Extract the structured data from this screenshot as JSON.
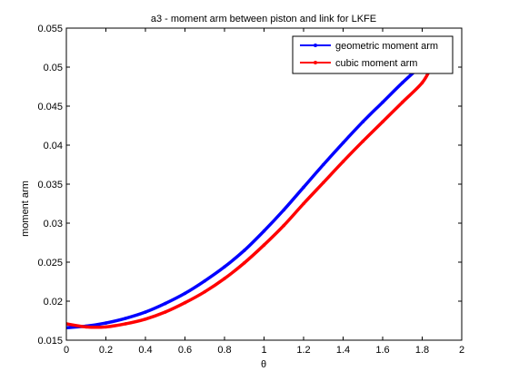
{
  "chart_data": {
    "type": "line",
    "title": "a3 - moment arm between piston and link for LKFE",
    "xlabel": "θ",
    "ylabel": "moment arm",
    "xlim": [
      0,
      2
    ],
    "ylim": [
      0.015,
      0.055
    ],
    "x_ticks": [
      0,
      0.2,
      0.4,
      0.6,
      0.8,
      1,
      1.2,
      1.4,
      1.6,
      1.8,
      2
    ],
    "x_tick_labels": [
      "0",
      "0.2",
      "0.4",
      "0.6",
      "0.8",
      "1",
      "1.2",
      "1.4",
      "1.6",
      "1.8",
      "2"
    ],
    "y_ticks": [
      0.015,
      0.02,
      0.025,
      0.03,
      0.035,
      0.04,
      0.045,
      0.05,
      0.055
    ],
    "y_tick_labels": [
      "0.015",
      "0.02",
      "0.025",
      "0.03",
      "0.035",
      "0.04",
      "0.045",
      "0.05",
      "0.055"
    ],
    "grid": false,
    "legend_position": "top-right",
    "series": [
      {
        "name": "geometric moment arm",
        "color": "#0000ff",
        "x": [
          0,
          0.1,
          0.2,
          0.3,
          0.4,
          0.5,
          0.6,
          0.7,
          0.8,
          0.9,
          1.0,
          1.1,
          1.2,
          1.3,
          1.4,
          1.5,
          1.6,
          1.7,
          1.8
        ],
        "y": [
          0.0166,
          0.0168,
          0.0172,
          0.0178,
          0.0186,
          0.0197,
          0.021,
          0.0226,
          0.0244,
          0.0265,
          0.029,
          0.0317,
          0.0346,
          0.0375,
          0.0403,
          0.043,
          0.0455,
          0.048,
          0.0503
        ]
      },
      {
        "name": "cubic moment arm",
        "color": "#ff0000",
        "x": [
          0,
          0.1,
          0.2,
          0.3,
          0.4,
          0.5,
          0.6,
          0.7,
          0.8,
          0.9,
          1.0,
          1.1,
          1.2,
          1.3,
          1.4,
          1.5,
          1.6,
          1.7,
          1.8,
          1.85
        ],
        "y": [
          0.0171,
          0.0167,
          0.0167,
          0.0171,
          0.0177,
          0.0186,
          0.0198,
          0.0212,
          0.0229,
          0.0249,
          0.0272,
          0.0297,
          0.0325,
          0.0352,
          0.0379,
          0.0405,
          0.043,
          0.0455,
          0.048,
          0.0502
        ]
      }
    ]
  }
}
